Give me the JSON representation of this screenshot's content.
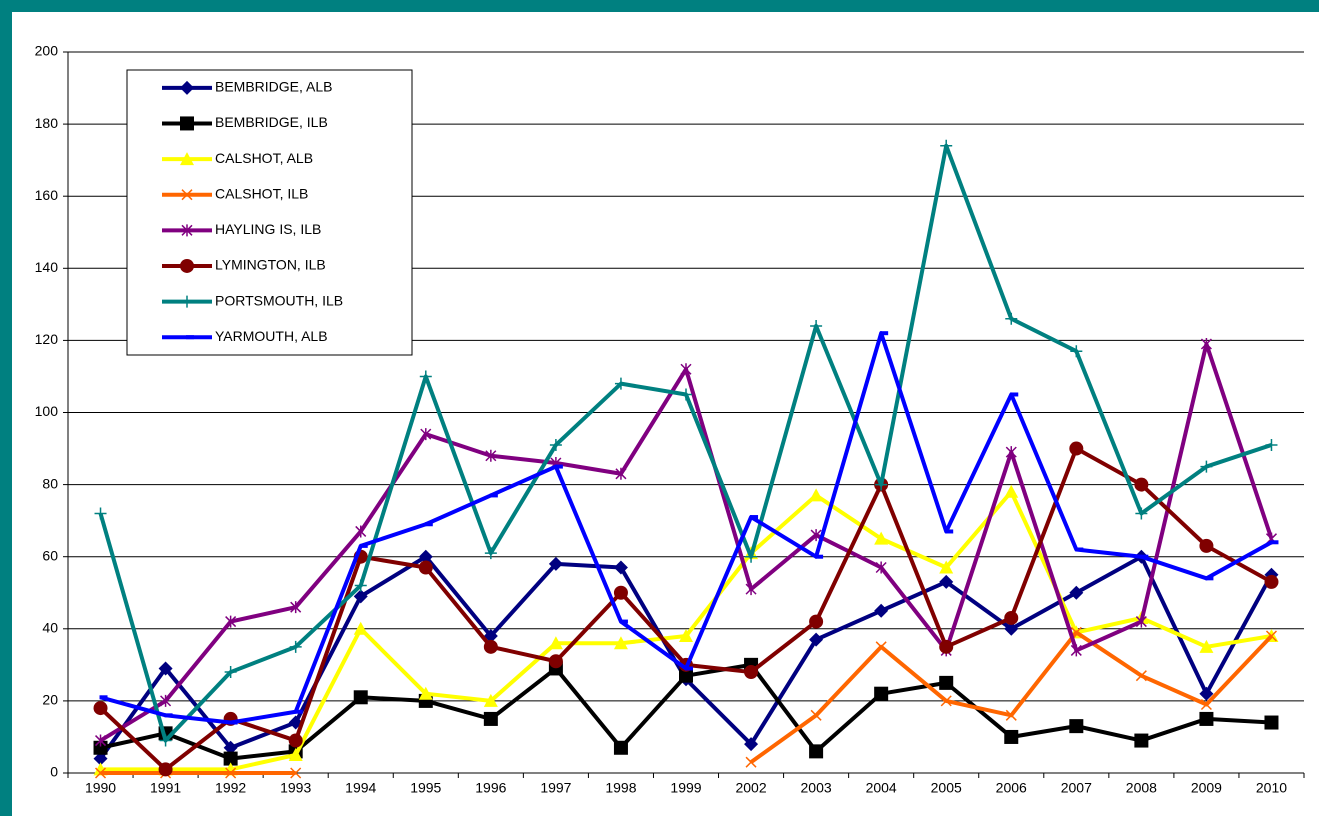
{
  "chart_data": {
    "type": "line",
    "categories": [
      "1990",
      "1991",
      "1992",
      "1993",
      "1994",
      "1995",
      "1996",
      "1997",
      "1998",
      "1999",
      "2002",
      "2003",
      "2004",
      "2005",
      "2006",
      "2007",
      "2008",
      "2009",
      "2010"
    ],
    "ylim": [
      0,
      200
    ],
    "yticks": [
      0,
      20,
      40,
      60,
      80,
      100,
      120,
      140,
      160,
      180,
      200
    ],
    "grid": true,
    "legend": "upper left",
    "series": [
      {
        "name": "BEMBRIDGE, ALB",
        "color": "#000080",
        "marker": "diamond",
        "values": [
          4,
          29,
          7,
          14,
          49,
          60,
          38,
          58,
          57,
          26,
          8,
          37,
          45,
          53,
          40,
          50,
          60,
          22,
          55
        ]
      },
      {
        "name": "BEMBRIDGE, ILB",
        "color": "#000000",
        "marker": "square",
        "values": [
          7,
          11,
          4,
          6,
          21,
          20,
          15,
          29,
          7,
          27,
          30,
          6,
          22,
          25,
          10,
          13,
          9,
          15,
          14
        ]
      },
      {
        "name": "CALSHOT, ALB",
        "color": "#ffff00",
        "marker": "triangle",
        "values": [
          1,
          1,
          1,
          5,
          40,
          22,
          20,
          36,
          36,
          38,
          61,
          77,
          65,
          57,
          78,
          39,
          43,
          35,
          38
        ]
      },
      {
        "name": "CALSHOT, ILB",
        "color": "#ff6600",
        "marker": "x",
        "values": [
          0,
          0,
          0,
          0,
          null,
          null,
          null,
          null,
          null,
          null,
          3,
          16,
          35,
          20,
          16,
          39,
          27,
          19,
          38
        ]
      },
      {
        "name": "HAYLING IS, ILB",
        "color": "#800080",
        "marker": "star",
        "values": [
          9,
          20,
          42,
          46,
          67,
          94,
          88,
          86,
          83,
          112,
          51,
          66,
          57,
          34,
          89,
          34,
          42,
          119,
          65
        ]
      },
      {
        "name": "LYMINGTON, ILB",
        "color": "#800000",
        "marker": "circle",
        "values": [
          18,
          1,
          15,
          9,
          60,
          57,
          35,
          31,
          50,
          30,
          28,
          42,
          80,
          35,
          43,
          90,
          80,
          63,
          53
        ]
      },
      {
        "name": "PORTSMOUTH, ILB",
        "color": "#008080",
        "marker": "plus",
        "values": [
          72,
          9,
          28,
          35,
          52,
          110,
          61,
          91,
          108,
          105,
          60,
          124,
          80,
          174,
          126,
          117,
          72,
          85,
          91
        ]
      },
      {
        "name": "YARMOUTH, ALB",
        "color": "#0000ff",
        "marker": "dash",
        "values": [
          21,
          16,
          14,
          17,
          63,
          69,
          77,
          85,
          42,
          29,
          71,
          60,
          122,
          67,
          105,
          62,
          60,
          54,
          64
        ]
      }
    ]
  }
}
